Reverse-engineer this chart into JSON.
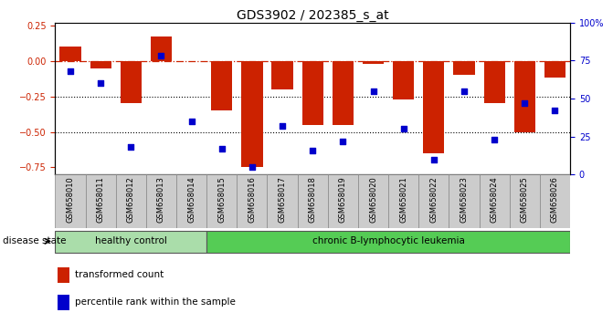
{
  "title": "GDS3902 / 202385_s_at",
  "samples": [
    "GSM658010",
    "GSM658011",
    "GSM658012",
    "GSM658013",
    "GSM658014",
    "GSM658015",
    "GSM658016",
    "GSM658017",
    "GSM658018",
    "GSM658019",
    "GSM658020",
    "GSM658021",
    "GSM658022",
    "GSM658023",
    "GSM658024",
    "GSM658025",
    "GSM658026"
  ],
  "bar_values": [
    0.1,
    -0.05,
    -0.3,
    0.17,
    0.0,
    -0.35,
    -0.75,
    -0.2,
    -0.45,
    -0.45,
    -0.02,
    -0.27,
    -0.65,
    -0.1,
    -0.3,
    -0.5,
    -0.12
  ],
  "percentile_values": [
    68,
    60,
    18,
    78,
    35,
    17,
    5,
    32,
    16,
    22,
    55,
    30,
    10,
    55,
    23,
    47,
    42
  ],
  "ylim_left": [
    -0.8,
    0.27
  ],
  "y_ticks_left": [
    0.25,
    0.0,
    -0.25,
    -0.5,
    -0.75
  ],
  "y_ticks_right_vals": [
    100,
    75,
    50,
    25,
    0
  ],
  "y_ticks_right_labels": [
    "100%",
    "75",
    "50",
    "25",
    "0"
  ],
  "hline_zero": 0.0,
  "hlines_dotted": [
    -0.25,
    -0.5
  ],
  "bar_color": "#cc2200",
  "square_color": "#0000cc",
  "healthy_count": 5,
  "leukemia_count": 12,
  "healthy_label": "healthy control",
  "leukemia_label": "chronic B-lymphocytic leukemia",
  "healthy_color": "#aaddaa",
  "leukemia_color": "#55cc55",
  "disease_state_label": "disease state",
  "legend_bar_label": "transformed count",
  "legend_square_label": "percentile rank within the sample",
  "xtick_bg_color": "#cccccc",
  "title_fontsize": 10,
  "tick_fontsize": 7,
  "xtick_fontsize": 6
}
